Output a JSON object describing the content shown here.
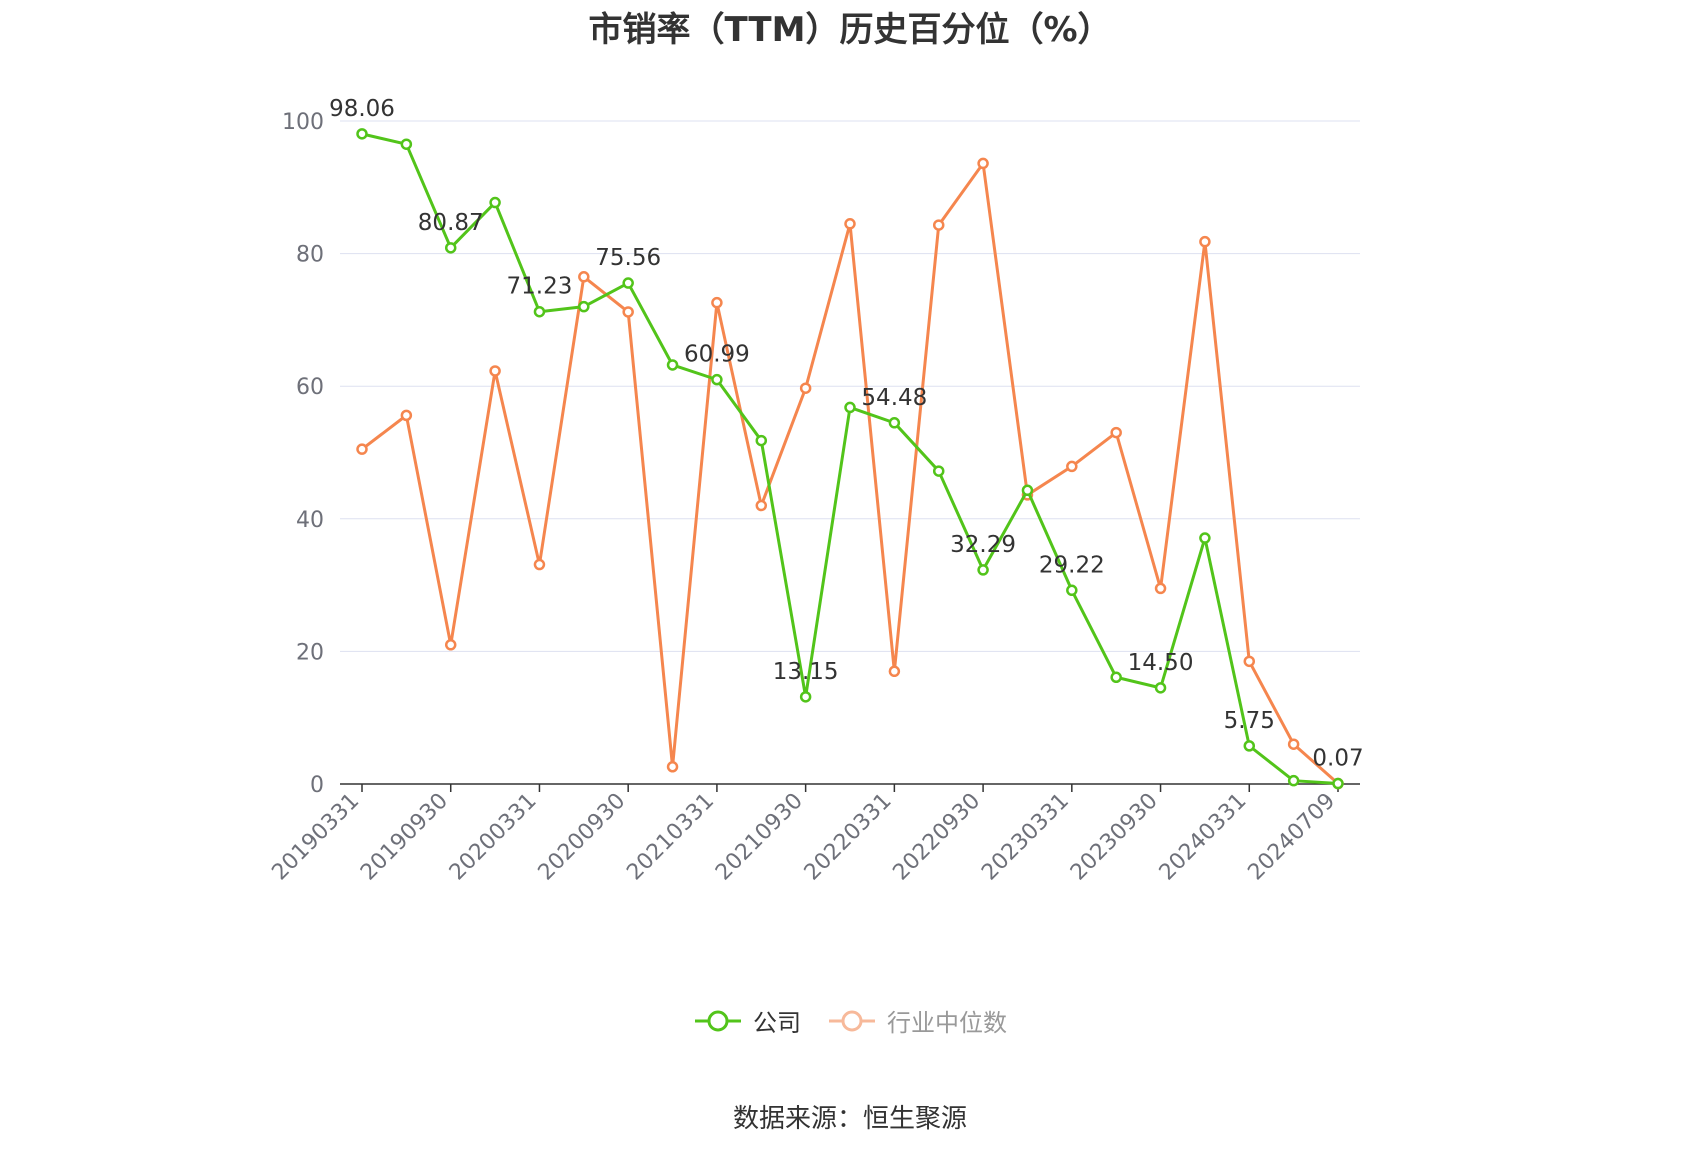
{
  "colors": {
    "company": "#52c41a",
    "industry": "#f5864e",
    "grid": "#dde1f0",
    "axis": "#333333",
    "tick_text": "#6e7079"
  },
  "chart_data": {
    "type": "line",
    "title": "市销率（TTM）历史百分位（%）",
    "ylim": [
      0,
      100
    ],
    "yticks": [
      0,
      20,
      40,
      60,
      80,
      100
    ],
    "grid": true,
    "legend_position": "bottom",
    "x": [
      "20190331",
      "20190630",
      "20190930",
      "20191231",
      "20200331",
      "20200630",
      "20200930",
      "20201231",
      "20210331",
      "20210630",
      "20210930",
      "20211231",
      "20220331",
      "20220630",
      "20220930",
      "20221231",
      "20230331",
      "20230630",
      "20230930",
      "20231231",
      "20240331",
      "20240630",
      "20240709"
    ],
    "x_tick_labels": [
      "20190331",
      "20190930",
      "20200331",
      "20200930",
      "20210331",
      "20210930",
      "20220331",
      "20220930",
      "20230331",
      "20230930",
      "20240331",
      "20240709"
    ],
    "series": [
      {
        "name": "公司",
        "color": "#52c41a",
        "values": [
          98.06,
          96.5,
          80.87,
          87.7,
          71.23,
          72.0,
          75.56,
          63.2,
          60.99,
          51.8,
          13.15,
          56.8,
          54.48,
          47.2,
          32.29,
          44.3,
          29.22,
          16.1,
          14.5,
          37.1,
          5.75,
          0.5,
          0.07
        ],
        "labels": [
          "98.06",
          null,
          "80.87",
          null,
          "71.23",
          null,
          "75.56",
          null,
          "60.99",
          null,
          "13.15",
          null,
          "54.48",
          null,
          "32.29",
          null,
          "29.22",
          null,
          "14.50",
          null,
          "5.75",
          null,
          "0.07"
        ]
      },
      {
        "name": "行业中位数",
        "color": "#f5864e",
        "values": [
          50.5,
          55.6,
          21.0,
          62.3,
          33.1,
          76.5,
          71.2,
          2.6,
          72.6,
          42.0,
          59.7,
          84.5,
          17.0,
          84.3,
          93.6,
          43.6,
          47.9,
          53.0,
          29.5,
          81.8,
          18.5,
          6.0,
          0.07
        ]
      }
    ]
  },
  "source": "数据来源：恒生聚源"
}
